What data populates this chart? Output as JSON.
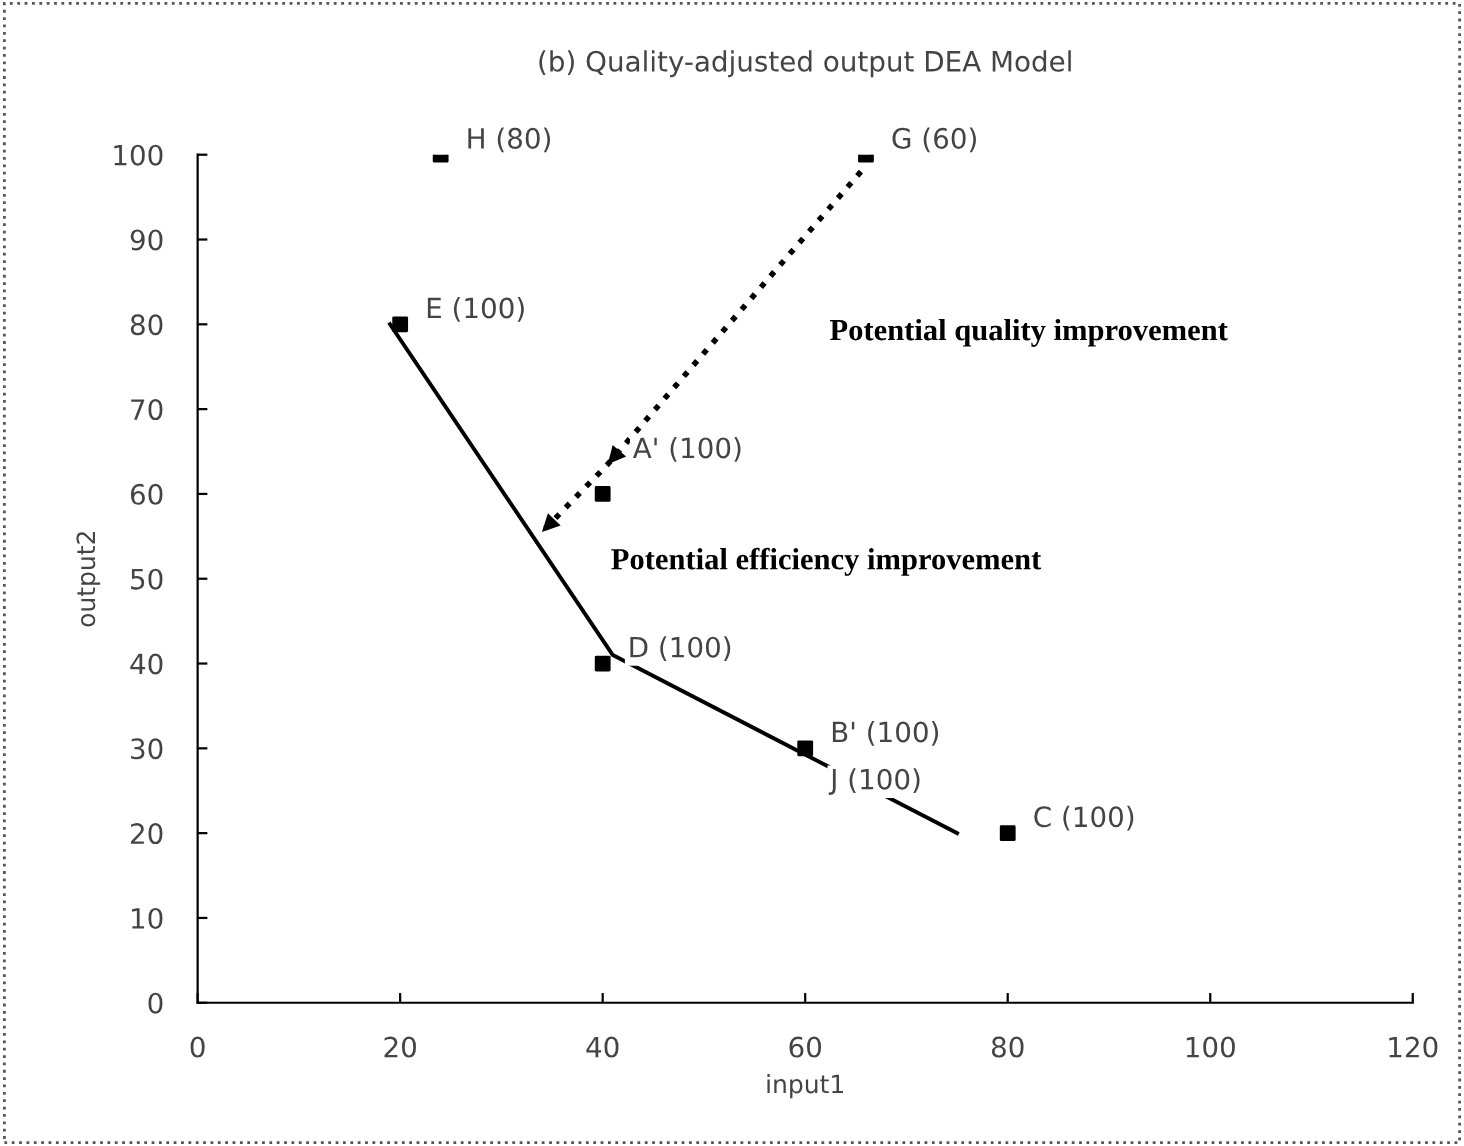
{
  "chart_data": {
    "type": "scatter",
    "title": "(b) Quality-adjusted output DEA Model",
    "xlabel": "input1",
    "ylabel": "output2",
    "xlim": [
      0,
      120
    ],
    "ylim": [
      0,
      100
    ],
    "xticks": [
      0,
      20,
      40,
      60,
      80,
      100,
      120
    ],
    "yticks": [
      0,
      10,
      20,
      30,
      40,
      50,
      60,
      70,
      80,
      90,
      100
    ],
    "grid": false,
    "legend": false,
    "series": [
      {
        "color": "#000000",
        "marker": "square",
        "x": [
          24,
          66,
          20,
          40,
          40,
          60,
          80
        ],
        "values": [
          100,
          100,
          80,
          60,
          40,
          30,
          20
        ]
      },
      {
        "type": "line",
        "color": "#000000",
        "line_style": "solid",
        "marker": "none",
        "x": [
          19,
          41,
          75
        ],
        "values": [
          80,
          41,
          20
        ]
      },
      {
        "type": "line",
        "color": "#000000",
        "line_style": "dotted",
        "marker": "none",
        "x": [
          65.5,
          40.5,
          34
        ],
        "values": [
          98,
          63.5,
          55.5
        ]
      }
    ],
    "annotations": [
      {
        "text": "H (80)",
        "x": 24,
        "y": 100
      },
      {
        "text": "G (60)",
        "x": 66,
        "y": 100
      },
      {
        "text": "E (100)",
        "x": 20,
        "y": 80
      },
      {
        "text": "A' (100)",
        "x": 40.5,
        "y": 63.5
      },
      {
        "text": "D (100)",
        "x": 40,
        "y": 40
      },
      {
        "text": "B' (100)",
        "x": 60,
        "y": 30
      },
      {
        "text": "J (100)",
        "x": 60,
        "y": 30
      },
      {
        "text": "C (100)",
        "x": 80,
        "y": 20
      },
      "Potential quality improvement",
      "Potential efficiency improvement"
    ]
  }
}
